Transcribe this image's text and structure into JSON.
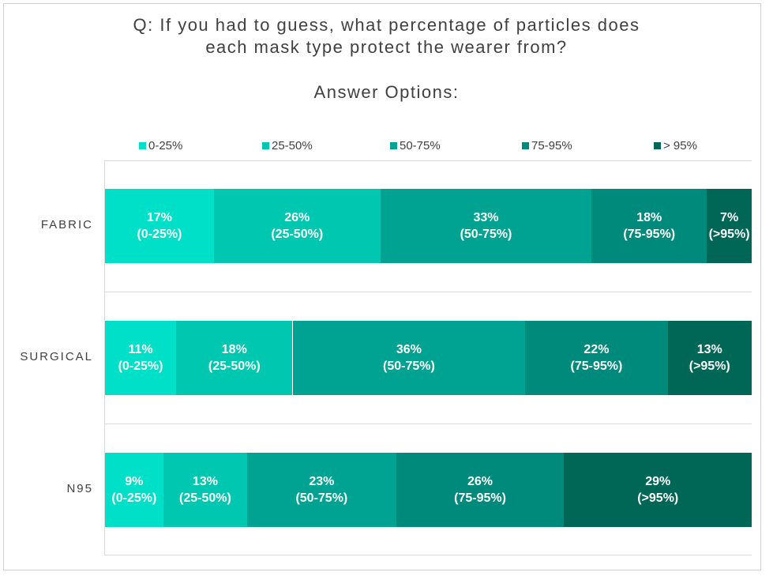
{
  "title_lines": [
    "Q: If you had to guess, what percentage of particles does",
    "each mask type protect the wearer from?"
  ],
  "legend_title": "Answer Options:",
  "colors": [
    "#00e0c8",
    "#00c7b0",
    "#00a392",
    "#008a7b",
    "#006655"
  ],
  "chart_data": {
    "type": "bar",
    "orientation": "horizontal",
    "stacked": true,
    "percent_stacked": true,
    "title": "Q: If you had to guess, what percentage of particles does each mask type protect the wearer from?",
    "legend_title": "Answer Options:",
    "legend_position": "top",
    "categories": [
      "FABRIC",
      "SURGICAL",
      "N95"
    ],
    "series": [
      {
        "name": "0-25%",
        "range": "(0-25%)",
        "values": [
          17,
          11,
          9
        ]
      },
      {
        "name": "25-50%",
        "range": "(25-50%)",
        "values": [
          26,
          18,
          13
        ]
      },
      {
        "name": "50-75%",
        "range": "(50-75%)",
        "values": [
          33,
          36,
          23
        ]
      },
      {
        "name": "75-95%",
        "range": "(75-95%)",
        "values": [
          18,
          22,
          26
        ]
      },
      {
        "name": "> 95%",
        "range": "(>95%)",
        "values": [
          7,
          13,
          29
        ]
      }
    ],
    "grid": false
  }
}
